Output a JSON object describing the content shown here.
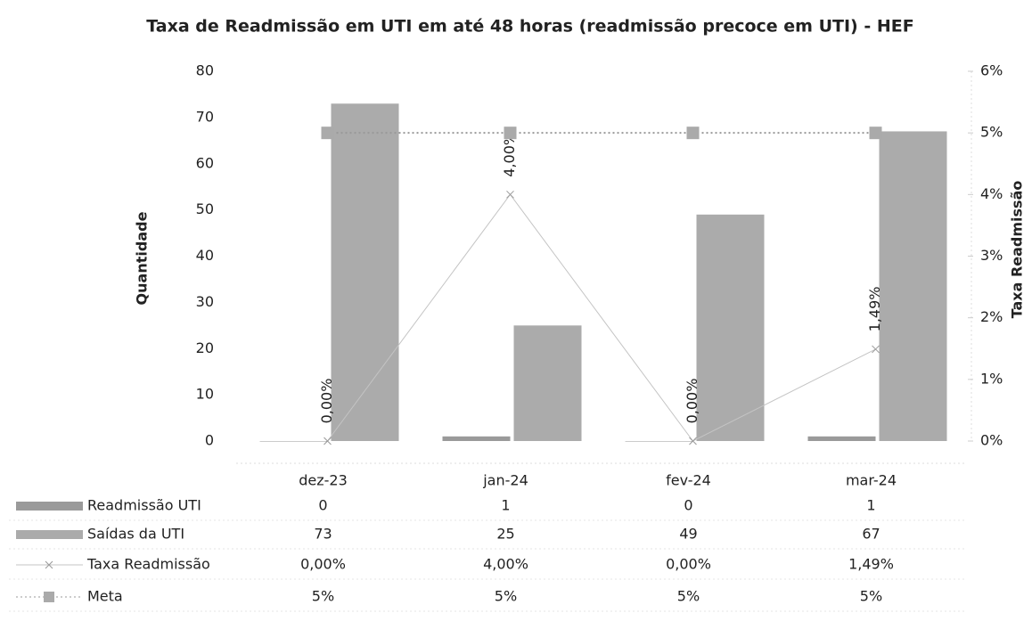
{
  "chart_data": {
    "type": "bar-line",
    "title": "Taxa de Readmissão em UTI em até 48 horas (readmissão precoce em UTI) - HEF",
    "y_label": "Quantidade",
    "y2_label": "Taxa Readmissão",
    "categories": [
      "dez-23",
      "jan-24",
      "fev-24",
      "mar-24"
    ],
    "series": [
      {
        "name": "Readmissão UTI",
        "type": "bar",
        "color": "#9a9a9a",
        "values": [
          0,
          1,
          0,
          1
        ]
      },
      {
        "name": "Saídas da UTI",
        "type": "bar",
        "color": "#ababab",
        "values": [
          73,
          25,
          49,
          67
        ]
      },
      {
        "name": "Taxa Readmissão",
        "type": "line",
        "axis": "y2",
        "color": "#c4c4c4",
        "values": [
          0,
          4,
          0,
          1.49
        ],
        "value_labels": [
          "0,00%",
          "4,00%",
          "0,00%",
          "1,49%"
        ]
      },
      {
        "name": "Meta",
        "type": "line",
        "axis": "y2",
        "color": "#999999",
        "values": [
          5,
          5,
          5,
          5
        ],
        "value_labels": [
          "5%",
          "5%",
          "5%",
          "5%"
        ]
      }
    ],
    "ylim": [
      0,
      80
    ],
    "yticks": [
      0,
      10,
      20,
      30,
      40,
      50,
      60,
      70,
      80
    ],
    "y2lim": [
      0,
      6
    ],
    "y2ticks": [
      {
        "value": 0,
        "label": "0%"
      },
      {
        "value": 1,
        "label": "1%"
      },
      {
        "value": 2,
        "label": "2%"
      },
      {
        "value": 3,
        "label": "3%"
      },
      {
        "value": 4,
        "label": "4%"
      },
      {
        "value": 5,
        "label": "5%"
      },
      {
        "value": 6,
        "label": "6%"
      }
    ],
    "data_table": true
  }
}
